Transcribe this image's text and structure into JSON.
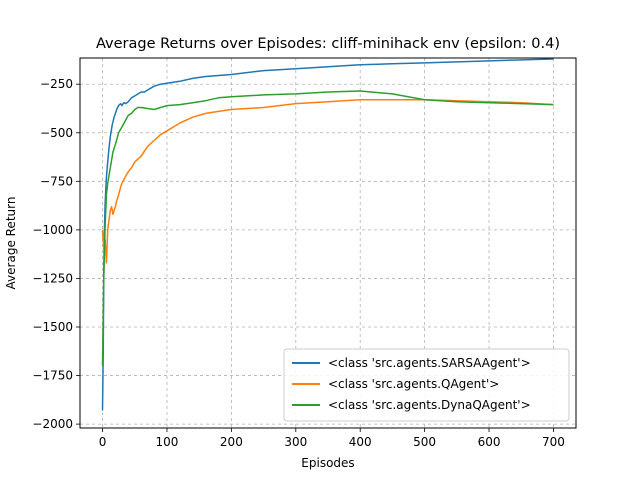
{
  "chart_data": {
    "type": "line",
    "title": "Average Returns over Episodes: cliff-minihack env (epsilon: 0.4)",
    "xlabel": "Episodes",
    "ylabel": "Average Return",
    "xlim": [
      -35,
      735
    ],
    "ylim": [
      -2020,
      -115
    ],
    "xticks": [
      0,
      100,
      200,
      300,
      400,
      500,
      600,
      700
    ],
    "yticks": [
      -2000,
      -1750,
      -1500,
      -1250,
      -1000,
      -750,
      -500,
      -250
    ],
    "grid": true,
    "grid_style": "dashed",
    "legend_position": "lower-right",
    "series": [
      {
        "name": "<class 'src.agents.SARSAAgent'>",
        "color": "#1f77b4",
        "x": [
          0,
          1,
          2,
          3,
          4,
          5,
          6,
          8,
          10,
          12,
          15,
          18,
          20,
          22,
          25,
          28,
          30,
          33,
          36,
          40,
          45,
          50,
          55,
          60,
          65,
          70,
          80,
          90,
          100,
          110,
          120,
          140,
          160,
          180,
          200,
          250,
          300,
          350,
          400,
          450,
          500,
          550,
          600,
          650,
          700
        ],
        "y": [
          -1930,
          -1650,
          -1200,
          -980,
          -870,
          -790,
          -730,
          -650,
          -580,
          -520,
          -460,
          -420,
          -400,
          -380,
          -360,
          -350,
          -360,
          -345,
          -350,
          -340,
          -320,
          -310,
          -300,
          -290,
          -290,
          -280,
          -260,
          -250,
          -245,
          -240,
          -235,
          -220,
          -210,
          -205,
          -200,
          -180,
          -170,
          -160,
          -150,
          -145,
          -140,
          -135,
          -130,
          -125,
          -120
        ]
      },
      {
        "name": "<class 'src.agents.QAgent'>",
        "color": "#ff7f0e",
        "x": [
          0,
          2,
          4,
          6,
          8,
          10,
          12,
          14,
          16,
          18,
          20,
          22,
          25,
          28,
          30,
          35,
          40,
          45,
          50,
          60,
          70,
          80,
          90,
          100,
          120,
          140,
          160,
          180,
          200,
          250,
          300,
          350,
          400,
          450,
          500,
          550,
          600,
          650,
          700
        ],
        "y": [
          -1000,
          -1100,
          -1050,
          -1170,
          -1000,
          -950,
          -900,
          -880,
          -920,
          -900,
          -880,
          -850,
          -820,
          -780,
          -760,
          -730,
          -700,
          -680,
          -650,
          -620,
          -570,
          -540,
          -510,
          -490,
          -450,
          -420,
          -400,
          -390,
          -380,
          -370,
          -350,
          -340,
          -330,
          -330,
          -330,
          -335,
          -340,
          -345,
          -355
        ]
      },
      {
        "name": "<class 'src.agents.DynaQAgent'>",
        "color": "#2ca02c",
        "x": [
          0,
          1,
          2,
          3,
          4,
          5,
          6,
          8,
          10,
          12,
          14,
          16,
          18,
          20,
          25,
          30,
          35,
          40,
          45,
          50,
          55,
          60,
          70,
          80,
          90,
          100,
          120,
          140,
          160,
          180,
          200,
          250,
          300,
          350,
          400,
          450,
          500,
          550,
          600,
          650,
          700
        ],
        "y": [
          -1700,
          -1450,
          -1250,
          -1100,
          -980,
          -900,
          -820,
          -760,
          -720,
          -680,
          -640,
          -600,
          -580,
          -560,
          -500,
          -470,
          -440,
          -410,
          -400,
          -380,
          -370,
          -370,
          -375,
          -380,
          -370,
          -360,
          -355,
          -345,
          -335,
          -320,
          -315,
          -305,
          -300,
          -290,
          -285,
          -300,
          -330,
          -340,
          -345,
          -350,
          -355
        ]
      }
    ]
  }
}
